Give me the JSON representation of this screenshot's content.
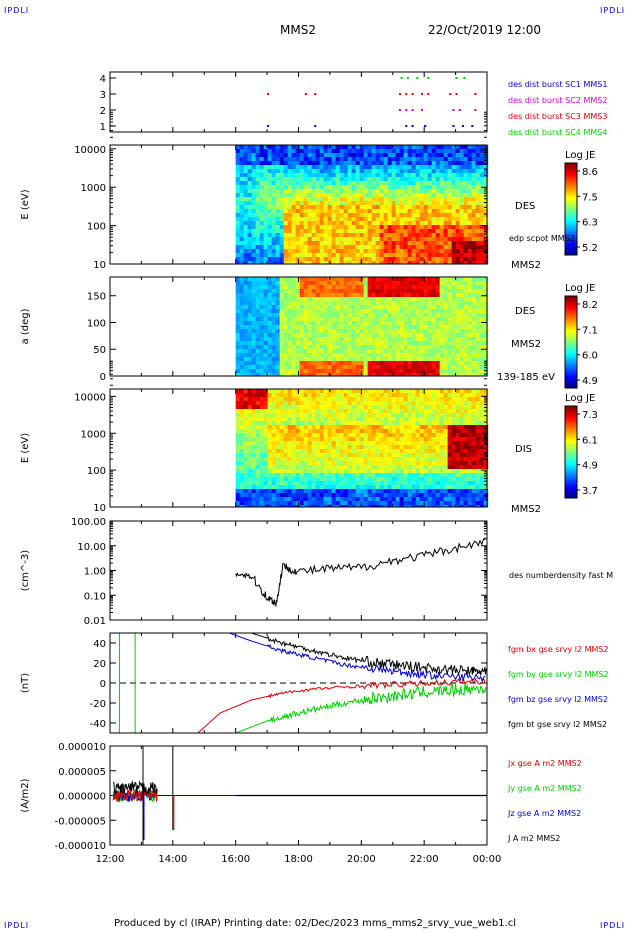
{
  "corners": {
    "tl": "IPDLI",
    "tr": "IPDLI",
    "bl": "IPDLI",
    "br": "IPDLI"
  },
  "header": {
    "title": "MMS2",
    "date": "22/Oct/2019 12:00"
  },
  "footer": "Produced by cl (IRAP)   Printing date: 02/Dec/2023   mms_mms2_srvy_vue_web1.cl",
  "chart_data": [
    {
      "type": "scatter",
      "name": "burst coverage",
      "yticks": [
        "1",
        "2",
        "3",
        "4"
      ],
      "legend": [
        {
          "text": "des dist burst SC1 MMS1",
          "color": "#0000cc"
        },
        {
          "text": "des dist burst SC2 MMS2",
          "color": "#cc00cc"
        },
        {
          "text": "des dist burst SC3 MMS3",
          "color": "#dd0000"
        },
        {
          "text": "des dist burst SC4 MMS4",
          "color": "#00cc00"
        }
      ],
      "bursts": [
        {
          "sc": 4,
          "t": [
            21.25,
            21.45,
            21.75,
            22.1,
            23.0,
            23.25
          ]
        },
        {
          "sc": 3,
          "t": [
            17.0,
            18.2,
            18.5,
            21.2,
            21.4,
            21.6,
            21.9,
            22.1,
            22.8,
            23.0,
            23.6
          ]
        },
        {
          "sc": 2,
          "t": [
            21.2,
            21.4,
            21.6,
            21.9,
            22.9,
            23.1,
            23.6
          ]
        },
        {
          "sc": 1,
          "t": [
            17.0,
            18.5,
            21.4,
            21.6,
            22.0,
            22.9,
            23.2,
            23.5
          ]
        }
      ]
    },
    {
      "type": "heatmap",
      "name": "DES energy",
      "ylabel": "E (eV)",
      "yticks": [
        "10",
        "100",
        "1000",
        "10000"
      ],
      "label": "DES",
      "sublabel": "MMS2",
      "overlay": "edp scpot MMS2",
      "colorbar": {
        "title": "Log JE",
        "ticks": [
          "8.6",
          "7.5",
          "6.3",
          "5.2"
        ]
      }
    },
    {
      "type": "heatmap",
      "name": "DES pitch angle",
      "ylabel": "a (deg)",
      "yticks": [
        "0",
        "50",
        "100",
        "150"
      ],
      "label": "DES",
      "sublabel": "MMS2",
      "range": "139-185 eV",
      "colorbar": {
        "title": "Log JE",
        "ticks": [
          "8.2",
          "7.1",
          "6.0",
          "4.9"
        ]
      }
    },
    {
      "type": "heatmap",
      "name": "DIS energy",
      "ylabel": "E (eV)",
      "yticks": [
        "10",
        "100",
        "1000",
        "10000"
      ],
      "label": "DIS",
      "sublabel": "MMS2",
      "colorbar": {
        "title": "Log JE",
        "ticks": [
          "7.3",
          "6.1",
          "4.9",
          "3.7"
        ]
      }
    },
    {
      "type": "line",
      "name": "density",
      "ylabel": "(cm^-3)",
      "yticks": [
        "0.01",
        "0.10",
        "1.00",
        "10.00",
        "100.00"
      ],
      "legend": [
        {
          "text": "des numberdensity fast M",
          "color": "#000000"
        }
      ],
      "series": [
        {
          "x": [
            16.0,
            16.5,
            17.0,
            17.3,
            17.5,
            18.0,
            19.0,
            20.0,
            21.0,
            22.0,
            23.0,
            24.0
          ],
          "y": [
            0.8,
            0.6,
            0.08,
            0.05,
            1.5,
            0.9,
            1.2,
            1.3,
            2.5,
            4.0,
            8.0,
            15.0
          ]
        }
      ]
    },
    {
      "type": "line",
      "name": "magnetic field",
      "ylabel": "(nT)",
      "yticks": [
        "-40",
        "-20",
        "0",
        "20",
        "40"
      ],
      "legend": [
        {
          "text": "fgm bx gse srvy l2 MMS2",
          "color": "#dd0000"
        },
        {
          "text": "fgm by gse srvy l2 MMS2",
          "color": "#00cc00"
        },
        {
          "text": "fgm bz gse srvy l2 MMS2",
          "color": "#0000cc"
        },
        {
          "text": "fgm bt gse srvy l2 MMS2",
          "color": "#000000"
        }
      ],
      "series": [
        {
          "color": "#dd0000",
          "x": [
            14.8,
            15.5,
            16.5,
            17.5,
            18.5,
            20.0,
            21.5,
            23.0,
            24.0
          ],
          "y": [
            -50,
            -30,
            -17,
            -10,
            -6,
            -3,
            -1,
            1,
            2
          ]
        },
        {
          "color": "#00cc00",
          "x": [
            16.0,
            17.0,
            18.0,
            19.0,
            20.0,
            21.0,
            22.0,
            23.0,
            24.0
          ],
          "y": [
            -50,
            -38,
            -30,
            -23,
            -17,
            -13,
            -9,
            -7,
            -5
          ]
        },
        {
          "color": "#0000cc",
          "x": [
            15.8,
            16.5,
            17.5,
            18.5,
            19.5,
            20.5,
            21.5,
            22.5,
            24.0
          ],
          "y": [
            50,
            42,
            32,
            25,
            18,
            14,
            10,
            7,
            5
          ]
        },
        {
          "color": "#000000",
          "x": [
            16.5,
            17.5,
            18.5,
            19.5,
            20.5,
            21.5,
            22.5,
            23.5,
            24.0
          ],
          "y": [
            50,
            40,
            32,
            25,
            20,
            17,
            14,
            12,
            11
          ]
        }
      ]
    },
    {
      "type": "line",
      "name": "current density",
      "ylabel": "(A/m2)",
      "yticks": [
        "-0.000010",
        "-0.000005",
        "0.000000",
        "0.000005",
        "0.000010"
      ],
      "legend": [
        {
          "text": "Jx gse A m2 MMS2",
          "color": "#dd0000"
        },
        {
          "text": "Jy gse A m2 MMS2",
          "color": "#00cc00"
        },
        {
          "text": "Jz gse A m2 MMS2",
          "color": "#0000cc"
        },
        {
          "text": "J A m2 MMS2",
          "color": "#000000"
        }
      ]
    }
  ],
  "xticks": [
    "12:00",
    "14:00",
    "16:00",
    "18:00",
    "20:00",
    "22:00",
    "00:00"
  ]
}
